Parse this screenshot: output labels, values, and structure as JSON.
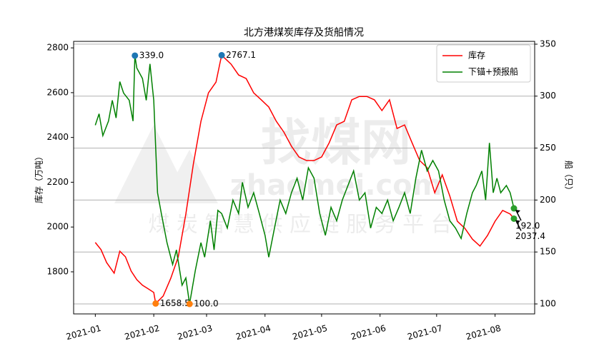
{
  "chart_data": {
    "type": "line",
    "title": "北方港煤炭库存及货船情况",
    "ylabel": "库存（万吨）",
    "y2label": "船（只）",
    "watermark": {
      "brand": "找煤网",
      "site": "zhaomei.com",
      "slogan": "煤 炭 智 慧 供 应 链 服 务 平 台"
    },
    "xlim": [
      -11.5,
      233
    ],
    "xticks": [
      {
        "value": 0,
        "label": "2021-01"
      },
      {
        "value": 31,
        "label": "2021-02"
      },
      {
        "value": 59,
        "label": "2021-03"
      },
      {
        "value": 90,
        "label": "2021-04"
      },
      {
        "value": 120,
        "label": "2021-05"
      },
      {
        "value": 151,
        "label": "2021-06"
      },
      {
        "value": 181,
        "label": "2021-07"
      },
      {
        "value": 212,
        "label": "2021-08"
      }
    ],
    "ylim": [
      1612,
      2829
    ],
    "yticks": [
      1800,
      2000,
      2200,
      2400,
      2600,
      2800
    ],
    "y2lim": [
      90.4,
      352.7
    ],
    "y2ticks": [
      100,
      150,
      200,
      250,
      300,
      350
    ],
    "grid": "y2",
    "legend": "upper right",
    "series": [
      {
        "name": "库存",
        "color": "#ff0000",
        "axis": "y",
        "x": [
          0,
          3,
          6,
          10,
          13,
          16,
          19,
          22,
          25,
          28,
          31,
          32,
          36,
          40,
          44,
          48,
          52,
          56,
          60,
          64,
          66,
          67,
          72,
          76,
          80,
          84,
          88,
          92,
          96,
          100,
          104,
          108,
          112,
          116,
          120,
          124,
          128,
          132,
          136,
          140,
          144,
          148,
          152,
          156,
          160,
          164,
          168,
          172,
          176,
          180,
          184,
          188,
          192,
          196,
          200,
          204,
          208,
          212,
          216,
          220,
          222
        ],
        "values": [
          1931,
          1899,
          1841,
          1794,
          1892,
          1867,
          1803,
          1765,
          1740,
          1724,
          1708,
          1658.5,
          1692,
          1771,
          1867,
          2058,
          2281,
          2472,
          2599,
          2647,
          2727,
          2767.1,
          2727,
          2679,
          2663,
          2599,
          2568,
          2536,
          2472,
          2424,
          2361,
          2313,
          2297,
          2297,
          2313,
          2376,
          2456,
          2472,
          2568,
          2583,
          2583,
          2568,
          2520,
          2568,
          2440,
          2456,
          2376,
          2297,
          2265,
          2153,
          2233,
          2138,
          2026,
          1994,
          1946,
          1915,
          1962,
          2026,
          2074,
          2058,
          2037.4
        ]
      },
      {
        "name": "下锚+预报船",
        "color": "#008000",
        "axis": "y2",
        "x": [
          0,
          2,
          4,
          7,
          9,
          11,
          13,
          15,
          18,
          20,
          21,
          22,
          25,
          27,
          29,
          31,
          33,
          35,
          38,
          41,
          43,
          46,
          48,
          50,
          53,
          56,
          58,
          61,
          63,
          65,
          67,
          70,
          73,
          76,
          78,
          81,
          84,
          87,
          90,
          92,
          95,
          98,
          101,
          104,
          107,
          110,
          113,
          116,
          119,
          122,
          125,
          128,
          131,
          134,
          137,
          140,
          143,
          146,
          149,
          152,
          155,
          158,
          161,
          164,
          167,
          170,
          173,
          176,
          179,
          182,
          185,
          188,
          191,
          194,
          197,
          200,
          202,
          205,
          207,
          209,
          211,
          213,
          215,
          218,
          220,
          222
        ],
        "values": [
          272,
          283,
          262,
          276,
          296,
          279,
          314,
          303,
          296,
          276,
          339,
          327,
          317,
          296,
          331,
          296,
          207,
          187,
          159,
          138,
          152,
          118,
          125,
          100,
          132,
          159,
          145,
          180,
          152,
          190,
          187,
          173,
          200,
          187,
          217,
          193,
          207,
          187,
          166,
          145,
          173,
          200,
          187,
          207,
          221,
          200,
          231,
          221,
          187,
          166,
          193,
          180,
          200,
          214,
          228,
          200,
          207,
          173,
          193,
          187,
          200,
          180,
          193,
          207,
          187,
          221,
          248,
          228,
          238,
          228,
          200,
          180,
          173,
          163,
          187,
          207,
          214,
          228,
          200,
          255,
          207,
          221,
          207,
          214,
          207,
          192
        ]
      }
    ],
    "annotations": [
      {
        "label": "339.0",
        "x": 21,
        "value": 339,
        "axis": "y2",
        "color": "#1f77b4",
        "arrow": false
      },
      {
        "label": "2767.1",
        "x": 67,
        "value": 2767.1,
        "axis": "y",
        "color": "#1f77b4",
        "arrow": false
      },
      {
        "label": "1658.5",
        "x": 32,
        "value": 1658.5,
        "axis": "y",
        "color": "#ff7f0e",
        "arrow": false
      },
      {
        "label": "100.0",
        "x": 50,
        "value": 100,
        "axis": "y2",
        "color": "#ff7f0e",
        "arrow": false
      },
      {
        "label": "192.0",
        "x": 222,
        "value": 192,
        "axis": "y2",
        "color": "#2ca02c",
        "arrow": true
      },
      {
        "label": "2037.4",
        "x": 222,
        "value": 2037.4,
        "axis": "y",
        "color": "#2ca02c",
        "arrow": true
      }
    ]
  }
}
